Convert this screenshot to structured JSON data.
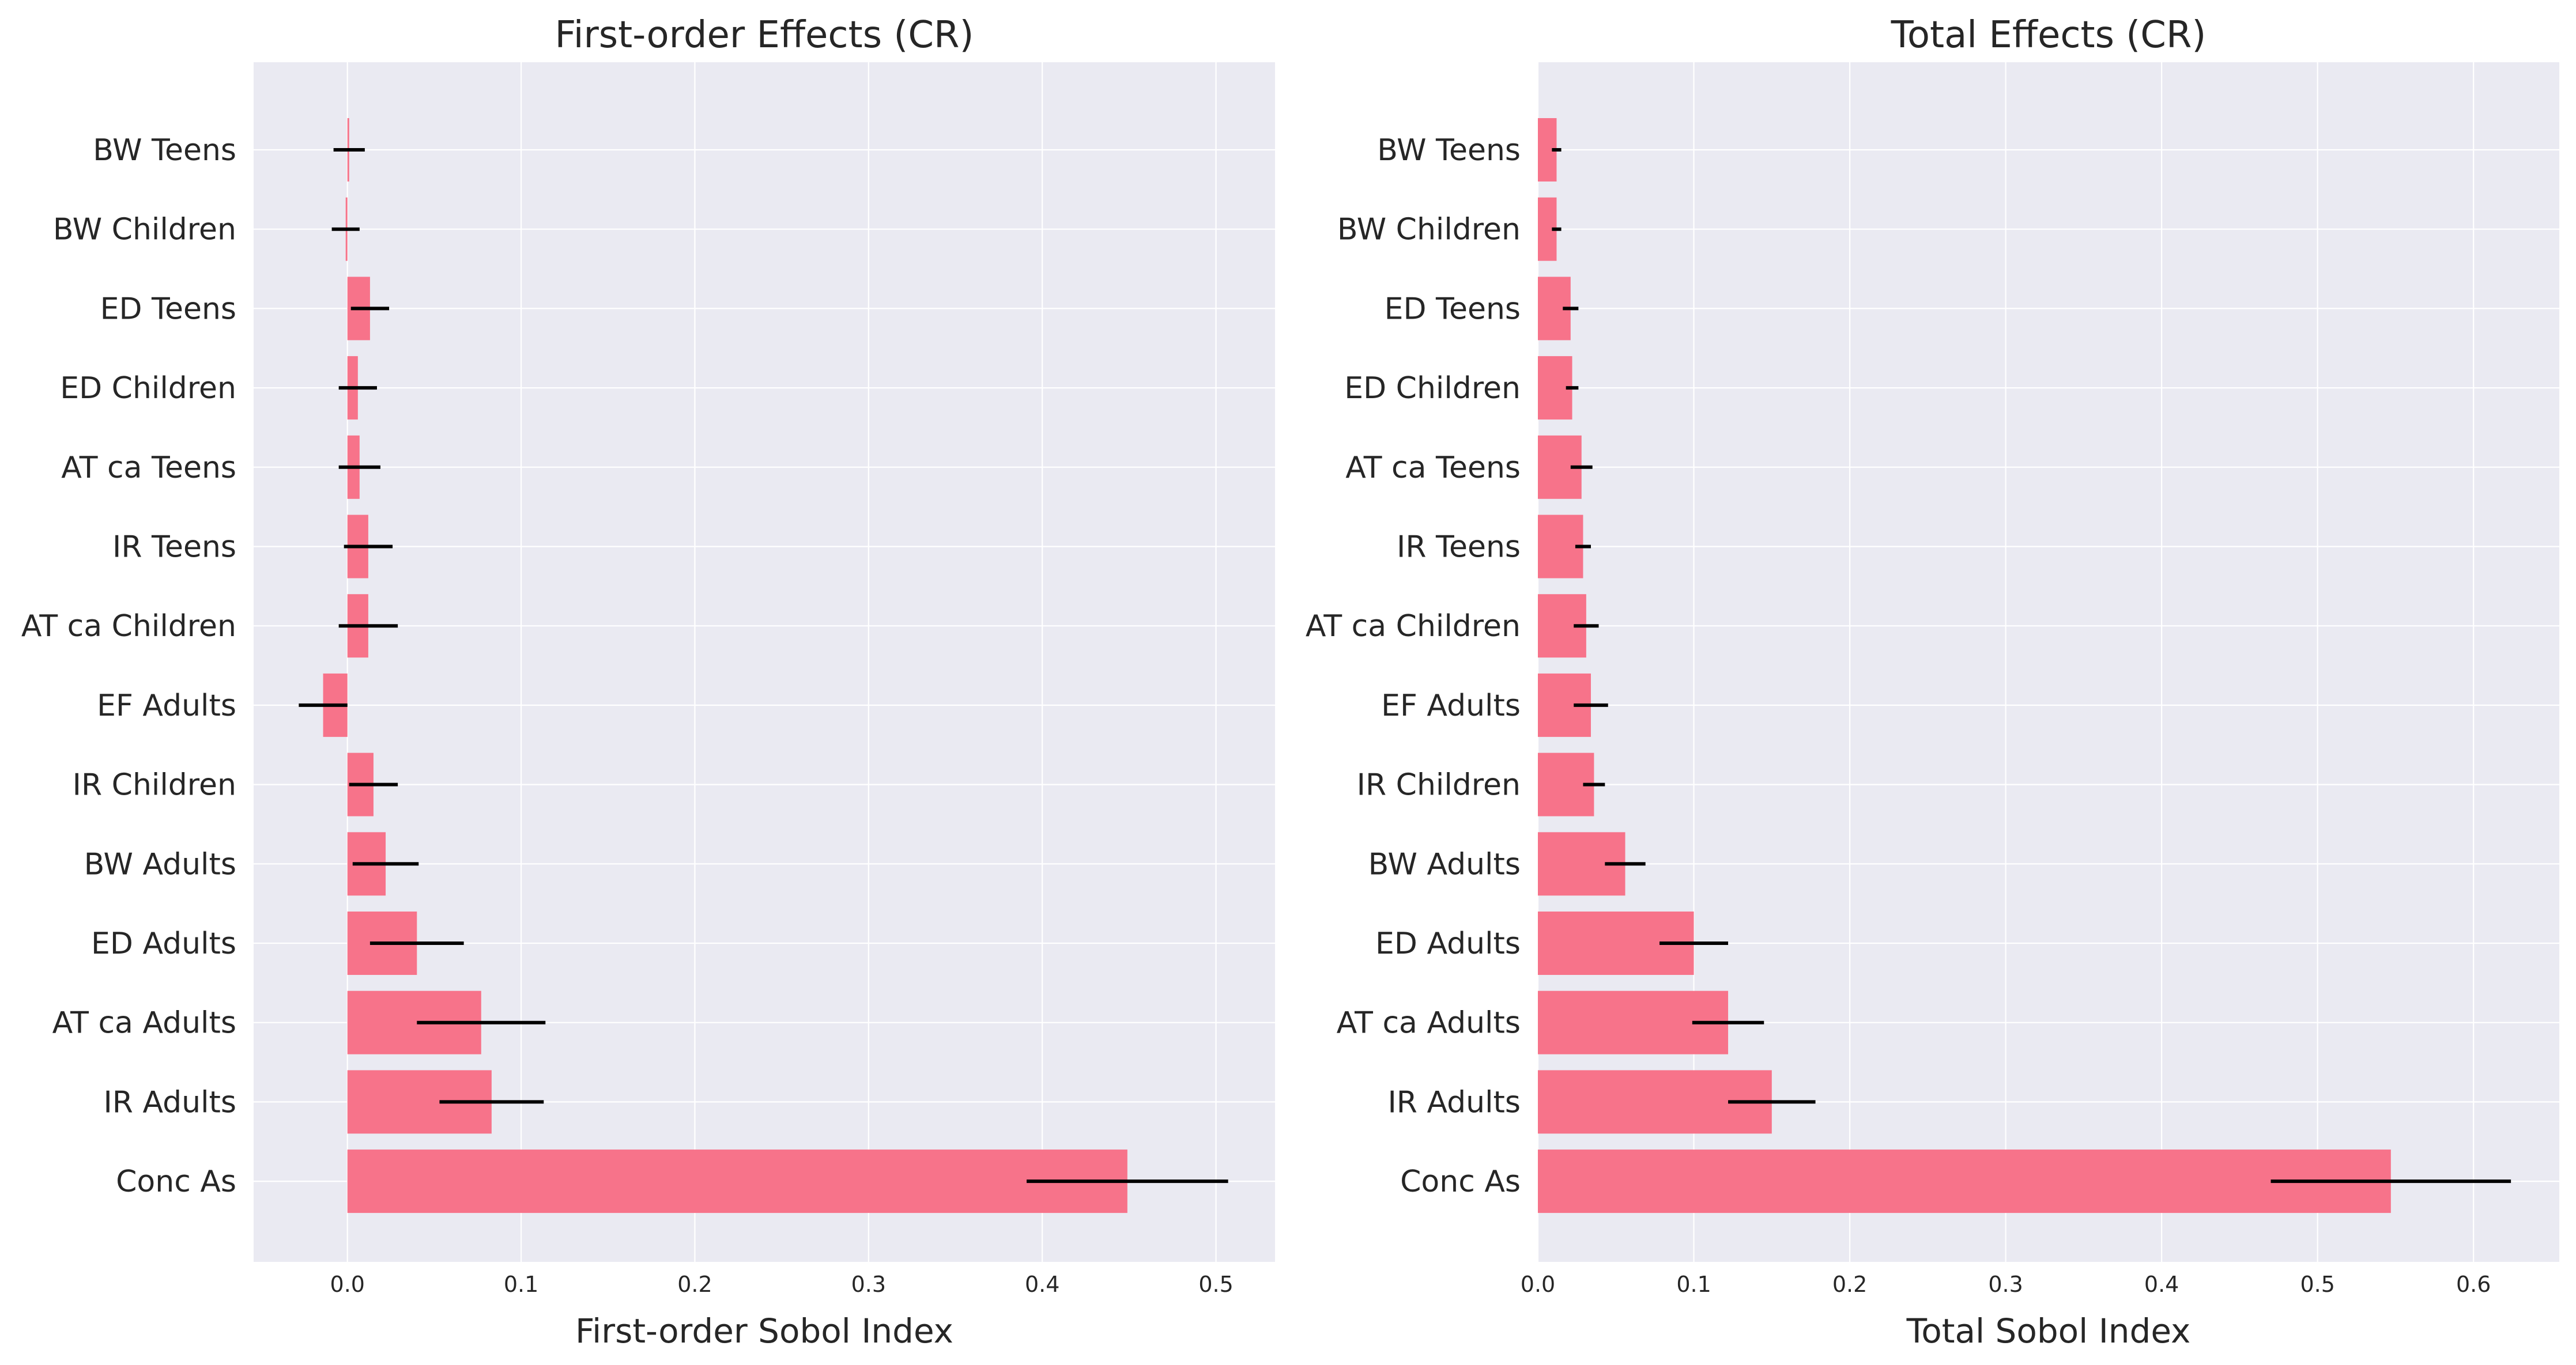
{
  "colors": {
    "background": "#eaeaf2",
    "bar": "#f7738a",
    "error_bar": "#000000",
    "grid": "#ffffff"
  },
  "chart_data": [
    {
      "type": "bar",
      "orientation": "horizontal",
      "title": "First-order Effects (CR)",
      "xlabel": "First-order Sobol Index",
      "ylabel": "",
      "grid": true,
      "categories": [
        "BW Teens",
        "BW Children",
        "ED Teens",
        "ED Children",
        "AT ca Teens",
        "IR Teens",
        "AT ca Children",
        "EF Adults",
        "IR Children",
        "BW Adults",
        "ED Adults",
        "AT ca Adults",
        "IR Adults",
        "Conc As"
      ],
      "values": [
        0.001,
        -0.001,
        0.013,
        0.006,
        0.007,
        0.012,
        0.012,
        -0.014,
        0.015,
        0.022,
        0.04,
        0.077,
        0.083,
        0.449
      ],
      "errors": [
        0.009,
        0.008,
        0.011,
        0.011,
        0.012,
        0.014,
        0.017,
        0.014,
        0.014,
        0.019,
        0.027,
        0.037,
        0.03,
        0.058
      ],
      "xlim": [
        -0.054,
        0.534
      ],
      "xticks": [
        0.0,
        0.1,
        0.2,
        0.3,
        0.4,
        0.5
      ],
      "xtick_labels": [
        "0.0",
        "0.1",
        "0.2",
        "0.3",
        "0.4",
        "0.5"
      ]
    },
    {
      "type": "bar",
      "orientation": "horizontal",
      "title": "Total Effects (CR)",
      "xlabel": "Total Sobol Index",
      "ylabel": "",
      "grid": true,
      "categories": [
        "BW Teens",
        "BW Children",
        "ED Teens",
        "ED Children",
        "AT ca Teens",
        "IR Teens",
        "AT ca Children",
        "EF Adults",
        "IR Children",
        "BW Adults",
        "ED Adults",
        "AT ca Adults",
        "IR Adults",
        "Conc As"
      ],
      "values": [
        0.012,
        0.012,
        0.021,
        0.022,
        0.028,
        0.029,
        0.031,
        0.034,
        0.036,
        0.056,
        0.1,
        0.122,
        0.15,
        0.547
      ],
      "errors": [
        0.003,
        0.003,
        0.005,
        0.004,
        0.007,
        0.005,
        0.008,
        0.011,
        0.007,
        0.013,
        0.022,
        0.023,
        0.028,
        0.077
      ],
      "xlim": [
        0.0,
        0.655
      ],
      "xticks": [
        0.0,
        0.1,
        0.2,
        0.3,
        0.4,
        0.5,
        0.6
      ],
      "xtick_labels": [
        "0.0",
        "0.1",
        "0.2",
        "0.3",
        "0.4",
        "0.5",
        "0.6"
      ]
    }
  ]
}
